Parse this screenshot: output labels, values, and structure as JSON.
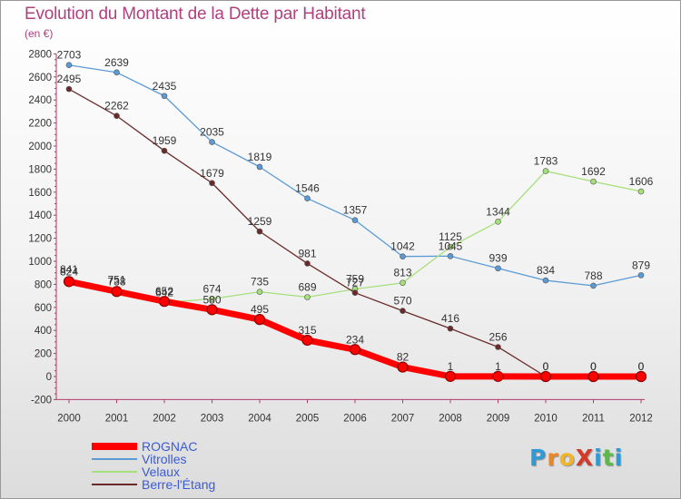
{
  "title": "Evolution du Montant de la Dette par Habitant",
  "subtitle": "(en €)",
  "logo": {
    "text": "ProXiti",
    "letters": [
      {
        "ch": "P",
        "color": "#2e9ad8"
      },
      {
        "ch": "r",
        "color": "#e8862a"
      },
      {
        "ch": "o",
        "color": "#f0b52b"
      },
      {
        "ch": "X",
        "color": "#d33a2c"
      },
      {
        "ch": "i",
        "color": "#2e9ad8"
      },
      {
        "ch": "t",
        "color": "#5cb84a"
      },
      {
        "ch": "i",
        "color": "#2e9ad8"
      }
    ]
  },
  "chart_data": {
    "type": "line",
    "title": "Evolution du Montant de la Dette par Habitant",
    "subtitle": "(en €)",
    "x": [
      "2000",
      "2001",
      "2002",
      "2003",
      "2004",
      "2005",
      "2006",
      "2007",
      "2008",
      "2009",
      "2010",
      "2011",
      "2012"
    ],
    "ylim": [
      -200,
      2800
    ],
    "yticks": [
      -200,
      0,
      200,
      400,
      600,
      800,
      1000,
      1200,
      1400,
      1600,
      1800,
      2000,
      2200,
      2400,
      2600,
      2800
    ],
    "grid": false,
    "legend": "bottom-left",
    "series": [
      {
        "name": "ROGNAC",
        "color": "#ff0000",
        "values": [
          824,
          738,
          652,
          580,
          495,
          315,
          234,
          82,
          1,
          1,
          0,
          0,
          0
        ]
      },
      {
        "name": "Vitrolles",
        "color": "#5b9bd5",
        "values": [
          2703,
          2639,
          2435,
          2035,
          1819,
          1546,
          1357,
          1042,
          1045,
          939,
          834,
          788,
          879
        ]
      },
      {
        "name": "Velaux",
        "color": "#a5e07a",
        "values": [
          841,
          751,
          642,
          674,
          735,
          689,
          759,
          813,
          1125,
          1344,
          1783,
          1692,
          1606
        ]
      },
      {
        "name": "Berre-l'Étang",
        "color": "#6b2a2a",
        "values": [
          2495,
          2262,
          1959,
          1679,
          1259,
          981,
          727,
          570,
          416,
          256,
          0,
          0,
          0
        ]
      }
    ]
  }
}
